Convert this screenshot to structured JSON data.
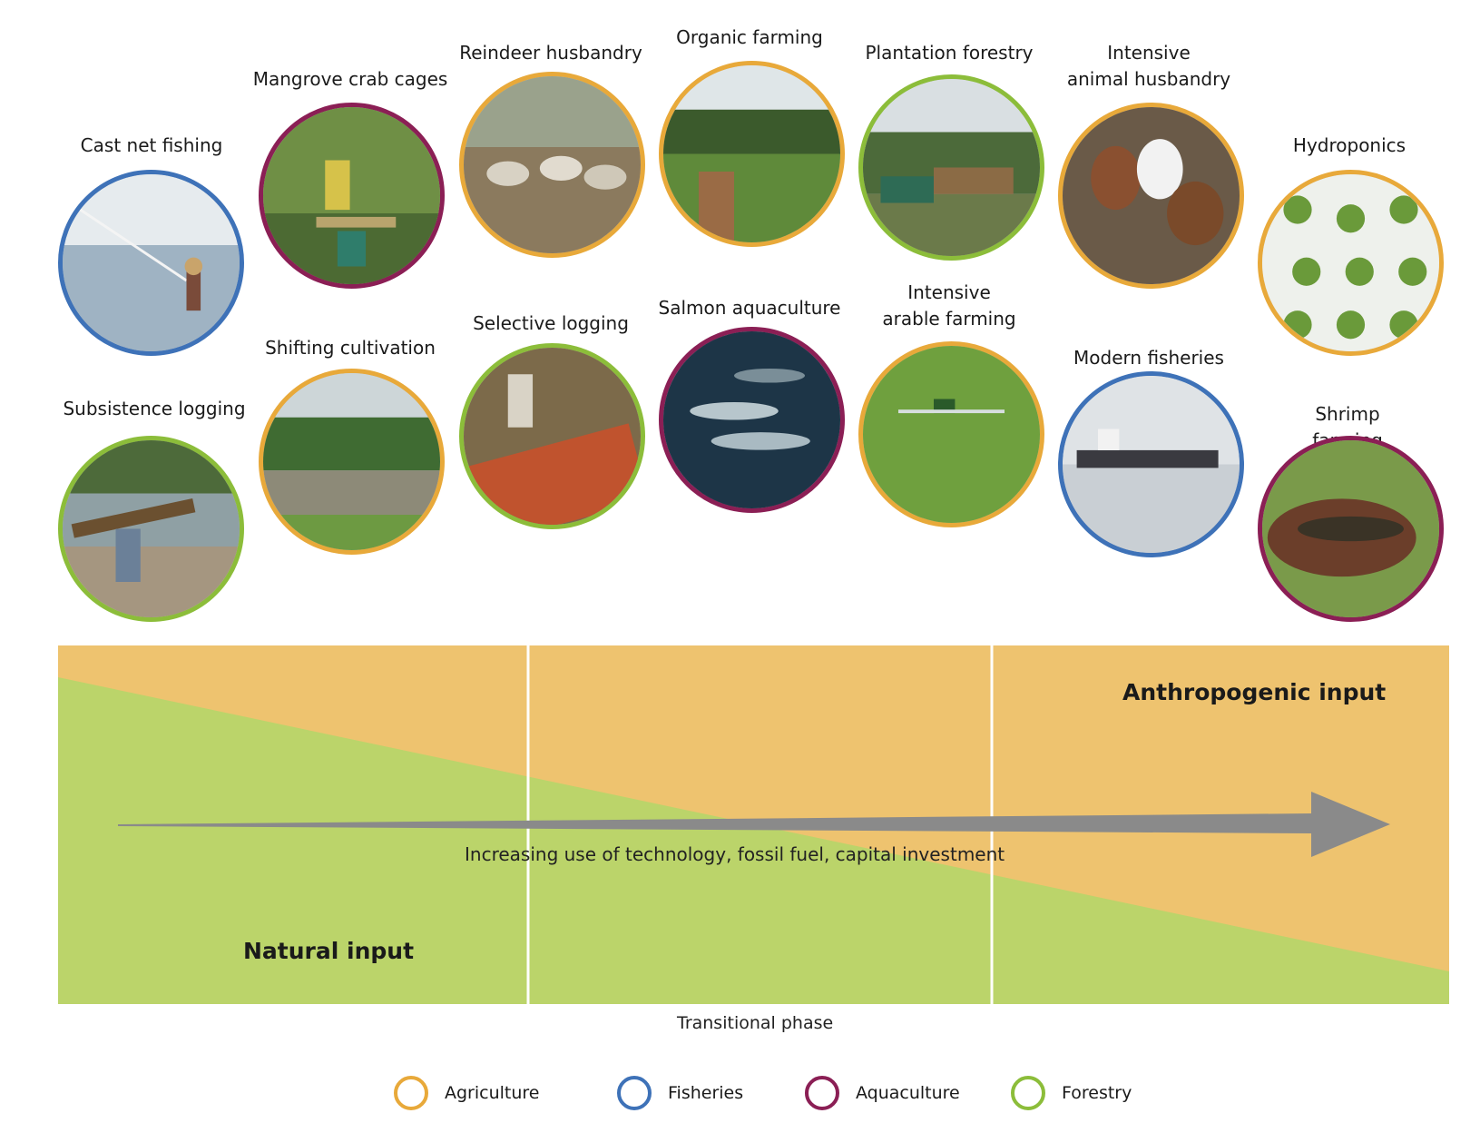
{
  "colors": {
    "agriculture": "#E8A93A",
    "fisheries": "#3E72B8",
    "aquaculture": "#8B1F55",
    "forestry": "#8CBD3A",
    "panel_orange": "#EEC36F",
    "panel_green": "#BBD46A",
    "arrow": "#8A8A8A"
  },
  "activities": [
    {
      "label": "Cast net fishing",
      "sector": "fisheries",
      "icon": "cast-net-fishing-photo"
    },
    {
      "label": "Subsistence logging",
      "sector": "forestry",
      "icon": "subsistence-logging-photo"
    },
    {
      "label": "Mangrove crab cages",
      "sector": "aquaculture",
      "icon": "mangrove-crab-cages-photo"
    },
    {
      "label": "Shifting cultivation",
      "sector": "agriculture",
      "icon": "shifting-cultivation-photo"
    },
    {
      "label": "Reindeer husbandry",
      "sector": "agriculture",
      "icon": "reindeer-husbandry-photo"
    },
    {
      "label": "Selective logging",
      "sector": "forestry",
      "icon": "selective-logging-photo"
    },
    {
      "label": "Organic farming",
      "sector": "agriculture",
      "icon": "organic-farming-photo"
    },
    {
      "label": "Salmon aquaculture",
      "sector": "aquaculture",
      "icon": "salmon-aquaculture-photo"
    },
    {
      "label": "Plantation forestry",
      "sector": "forestry",
      "icon": "plantation-forestry-photo"
    },
    {
      "label": "Intensive\narable farming",
      "sector": "agriculture",
      "icon": "intensive-arable-farming-photo"
    },
    {
      "label": "Intensive\nanimal husbandry",
      "sector": "agriculture",
      "icon": "intensive-animal-husbandry-photo"
    },
    {
      "label": "Modern fisheries",
      "sector": "fisheries",
      "icon": "modern-fisheries-photo"
    },
    {
      "label": "Hydroponics",
      "sector": "agriculture",
      "icon": "hydroponics-photo"
    },
    {
      "label": "Shrimp farming",
      "sector": "aquaculture",
      "icon": "shrimp-farming-photo"
    }
  ],
  "panel": {
    "anthropogenic_label": "Anthropogenic input",
    "natural_label": "Natural input",
    "arrow_label": "Increasing use of technology, fossil fuel, capital investment",
    "transitional_label": "Transitional phase"
  },
  "legend": [
    {
      "label": "Agriculture",
      "sector": "agriculture"
    },
    {
      "label": "Fisheries",
      "sector": "fisheries"
    },
    {
      "label": "Aquaculture",
      "sector": "aquaculture"
    },
    {
      "label": "Forestry",
      "sector": "forestry"
    }
  ]
}
